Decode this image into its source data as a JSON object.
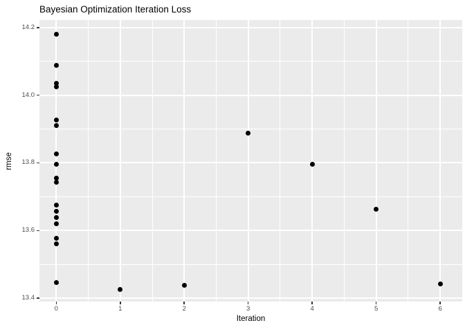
{
  "chart_data": {
    "type": "scatter",
    "title": "Bayesian Optimization Iteration Loss",
    "xlabel": "Iteration",
    "ylabel": "rmse",
    "xlim": [
      -0.263,
      6.345
    ],
    "ylim": [
      13.39,
      14.222
    ],
    "x_ticks": [
      0,
      1,
      2,
      3,
      4,
      5,
      6
    ],
    "x_tick_labels": [
      "0",
      "1",
      "2",
      "3",
      "4",
      "5",
      "6"
    ],
    "y_ticks": [
      13.4,
      13.6,
      13.8,
      14.0,
      14.2
    ],
    "y_tick_labels": [
      "13.4",
      "13.6",
      "13.8",
      "14.0",
      "14.2"
    ],
    "x_minor_breaks": [
      0.5,
      1.5,
      2.5,
      3.5,
      4.5,
      5.5
    ],
    "y_minor_breaks": [
      13.5,
      13.7,
      13.9,
      14.1
    ],
    "grid": true,
    "legend": "none",
    "points": [
      {
        "x": 0,
        "y": 14.18
      },
      {
        "x": 0,
        "y": 14.088
      },
      {
        "x": 0,
        "y": 14.035
      },
      {
        "x": 0,
        "y": 14.025
      },
      {
        "x": 0,
        "y": 13.927
      },
      {
        "x": 0,
        "y": 13.91
      },
      {
        "x": 0,
        "y": 13.826
      },
      {
        "x": 0,
        "y": 13.795
      },
      {
        "x": 0,
        "y": 13.755
      },
      {
        "x": 0,
        "y": 13.742
      },
      {
        "x": 0,
        "y": 13.675
      },
      {
        "x": 0,
        "y": 13.656
      },
      {
        "x": 0,
        "y": 13.638
      },
      {
        "x": 0,
        "y": 13.62
      },
      {
        "x": 0,
        "y": 13.578
      },
      {
        "x": 0,
        "y": 13.56
      },
      {
        "x": 0,
        "y": 13.446
      },
      {
        "x": 1,
        "y": 13.426
      },
      {
        "x": 2,
        "y": 13.438
      },
      {
        "x": 3,
        "y": 13.887
      },
      {
        "x": 4,
        "y": 13.796
      },
      {
        "x": 5,
        "y": 13.662
      },
      {
        "x": 6,
        "y": 13.442
      }
    ],
    "colors": {
      "panel_background": "#EBEBEB",
      "gridline": "#FFFFFF",
      "point": "#000000",
      "tick_label": "#4D4D4D",
      "tick_mark": "#333333",
      "text": "#000000"
    }
  }
}
